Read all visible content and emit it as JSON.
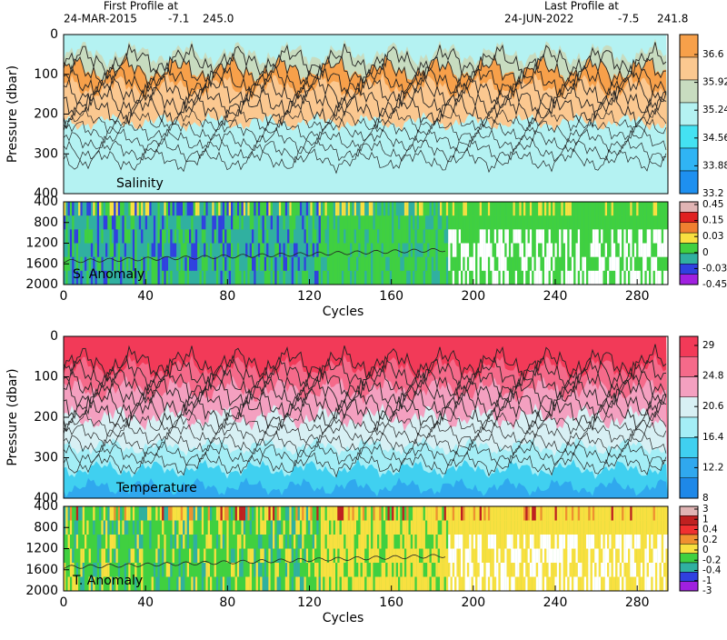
{
  "header": {
    "first_title": "First Profile at",
    "first_date": "24-MAR-2015",
    "first_lat": "-7.1",
    "first_lon": "245.0",
    "last_title": "Last Profile at",
    "last_date": "24-JUN-2022",
    "last_lat": "-7.5",
    "last_lon": "241.8"
  },
  "chart_data": [
    {
      "type": "heatmap",
      "title": "Salinity",
      "ylabel": "Pressure (dbar)",
      "xlim": [
        0,
        295
      ],
      "ylim": [
        400,
        0
      ],
      "yticks": [
        0,
        100,
        200,
        300,
        400
      ],
      "colorbar_ticks": [
        36.6,
        35.92,
        35.24,
        34.56,
        33.88,
        33.2
      ],
      "colorbar_colors": [
        "#f7a04a",
        "#fbc890",
        "#c8dcc0",
        "#b4f2f2",
        "#44e2f2",
        "#30b4f4",
        "#1e90f0"
      ]
    },
    {
      "type": "heatmap",
      "title": "S. Anomaly",
      "xlabel": "Cycles",
      "xlim": [
        0,
        295
      ],
      "xticks": [
        0,
        40,
        80,
        120,
        160,
        200,
        240,
        280
      ],
      "ylim": [
        2000,
        400
      ],
      "yticks": [
        400,
        800,
        1200,
        1600,
        2000
      ],
      "colorbar_ticks": [
        0.45,
        0.15,
        0.03,
        0,
        -0.03,
        -0.45
      ],
      "colorbar_colors": [
        "#e0b4b4",
        "#e02020",
        "#f08030",
        "#f8e040",
        "#40d040",
        "#30b0a0",
        "#3040e0",
        "#a020e0"
      ]
    },
    {
      "type": "heatmap",
      "title": "Temperature",
      "ylabel": "Pressure (dbar)",
      "xlim": [
        0,
        295
      ],
      "ylim": [
        400,
        0
      ],
      "yticks": [
        0,
        100,
        200,
        300,
        400
      ],
      "colorbar_ticks": [
        29,
        24.8,
        20.6,
        16.4,
        12.2,
        8
      ],
      "colorbar_colors": [
        "#f23a58",
        "#f56a8a",
        "#f4a0c0",
        "#d8f0f4",
        "#a4eef6",
        "#40d0f0",
        "#30a8ee",
        "#1e88e8"
      ]
    },
    {
      "type": "heatmap",
      "title": "T. Anomaly",
      "xlabel": "Cycles",
      "xlim": [
        0,
        295
      ],
      "xticks": [
        0,
        40,
        80,
        120,
        160,
        200,
        240,
        280
      ],
      "ylim": [
        2000,
        400
      ],
      "yticks": [
        400,
        800,
        1200,
        1600,
        2000
      ],
      "colorbar_ticks": [
        3,
        1,
        0.4,
        0.2,
        0,
        -0.2,
        -0.4,
        -1,
        -3
      ],
      "colorbar_colors": [
        "#e0b4b4",
        "#c02020",
        "#f03030",
        "#f09030",
        "#f8e040",
        "#40d040",
        "#30b0a0",
        "#3040e0",
        "#a020e0"
      ]
    }
  ]
}
